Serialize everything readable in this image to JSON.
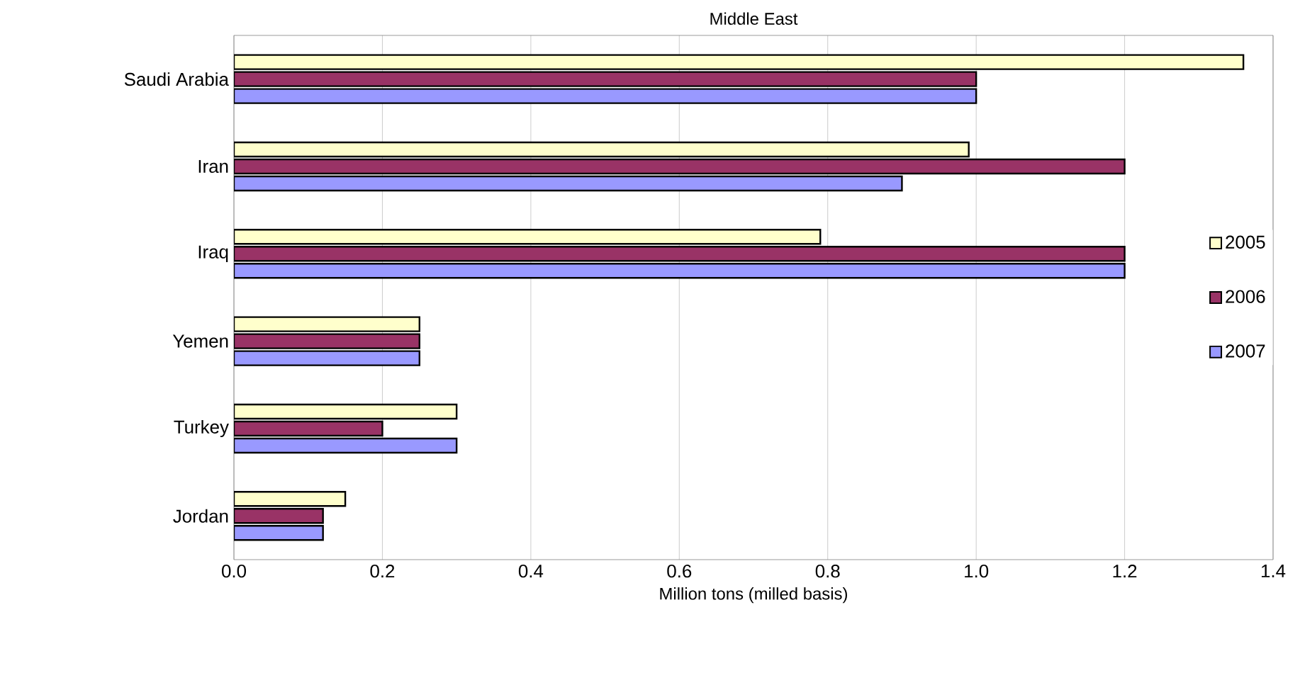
{
  "chart_data": {
    "type": "bar",
    "orientation": "horizontal",
    "title": "Middle East",
    "xlabel": "Million tons (milled basis)",
    "categories": [
      "Saudi Arabia",
      "Iran",
      "Iraq",
      "Yemen",
      "Turkey",
      "Jordan"
    ],
    "series": [
      {
        "name": "2005",
        "color": "#ffffcc",
        "values": [
          1.36,
          0.99,
          0.79,
          0.25,
          0.3,
          0.15
        ]
      },
      {
        "name": "2006",
        "color": "#993366",
        "values": [
          1.0,
          1.2,
          1.2,
          0.25,
          0.2,
          0.12
        ]
      },
      {
        "name": "2007",
        "color": "#9999ff",
        "values": [
          1.0,
          0.9,
          1.2,
          0.25,
          0.3,
          0.12
        ]
      }
    ],
    "xlim": [
      0,
      1.4
    ],
    "xticks": [
      {
        "value": 0,
        "label": "0.0"
      },
      {
        "value": 0.2,
        "label": "0.2"
      },
      {
        "value": 0.4,
        "label": "0.4"
      },
      {
        "value": 0.6,
        "label": "0.6"
      },
      {
        "value": 0.8,
        "label": "0.8"
      },
      {
        "value": 1.0,
        "label": "1.0"
      },
      {
        "value": 1.2,
        "label": "1.2"
      },
      {
        "value": 1.4,
        "label": "1.4"
      }
    ],
    "grid": "x",
    "legend": "right"
  }
}
